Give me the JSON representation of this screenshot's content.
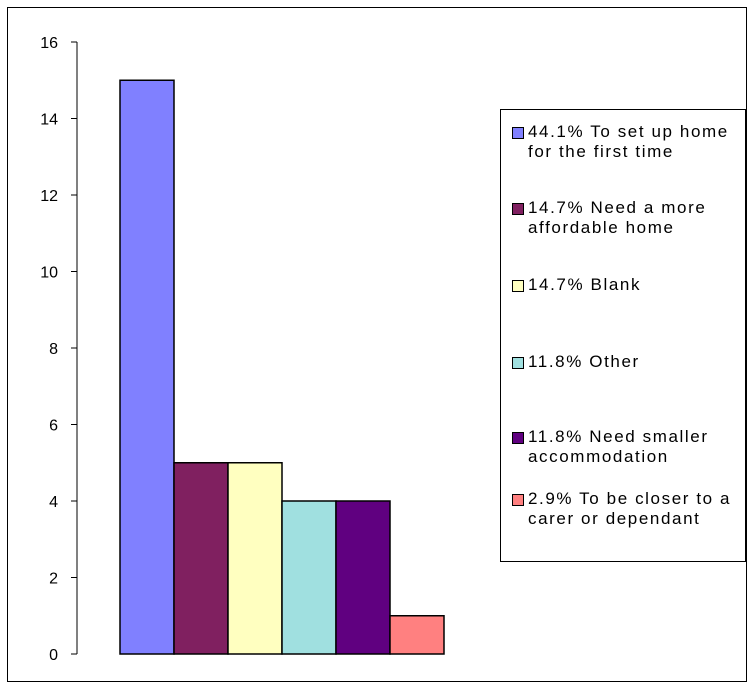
{
  "chart_data": {
    "type": "bar",
    "title": "",
    "xlabel": "",
    "ylabel": "",
    "ylim": [
      0,
      16
    ],
    "yticks": [
      0,
      2,
      4,
      6,
      8,
      10,
      12,
      14,
      16
    ],
    "y_tick_labels": [
      "0",
      "2",
      "4",
      "6",
      "8",
      "10",
      "12",
      "14",
      "16"
    ],
    "grid": false,
    "legend_position": "right",
    "series": [
      {
        "name": "44.1% To set up home for the first time",
        "values": [
          15
        ],
        "color": "#8080ff"
      },
      {
        "name": "14.7% Need a more affordable home",
        "values": [
          5
        ],
        "color": "#802060"
      },
      {
        "name": "14.7% Blank",
        "values": [
          5
        ],
        "color": "#ffffc0"
      },
      {
        "name": "11.8% Other",
        "values": [
          4
        ],
        "color": "#a0e0e0"
      },
      {
        "name": "11.8% Need smaller accommodation",
        "values": [
          4
        ],
        "color": "#600080"
      },
      {
        "name": "2.9% To be closer to a carer or dependant",
        "values": [
          1
        ],
        "color": "#ff8080"
      }
    ]
  }
}
